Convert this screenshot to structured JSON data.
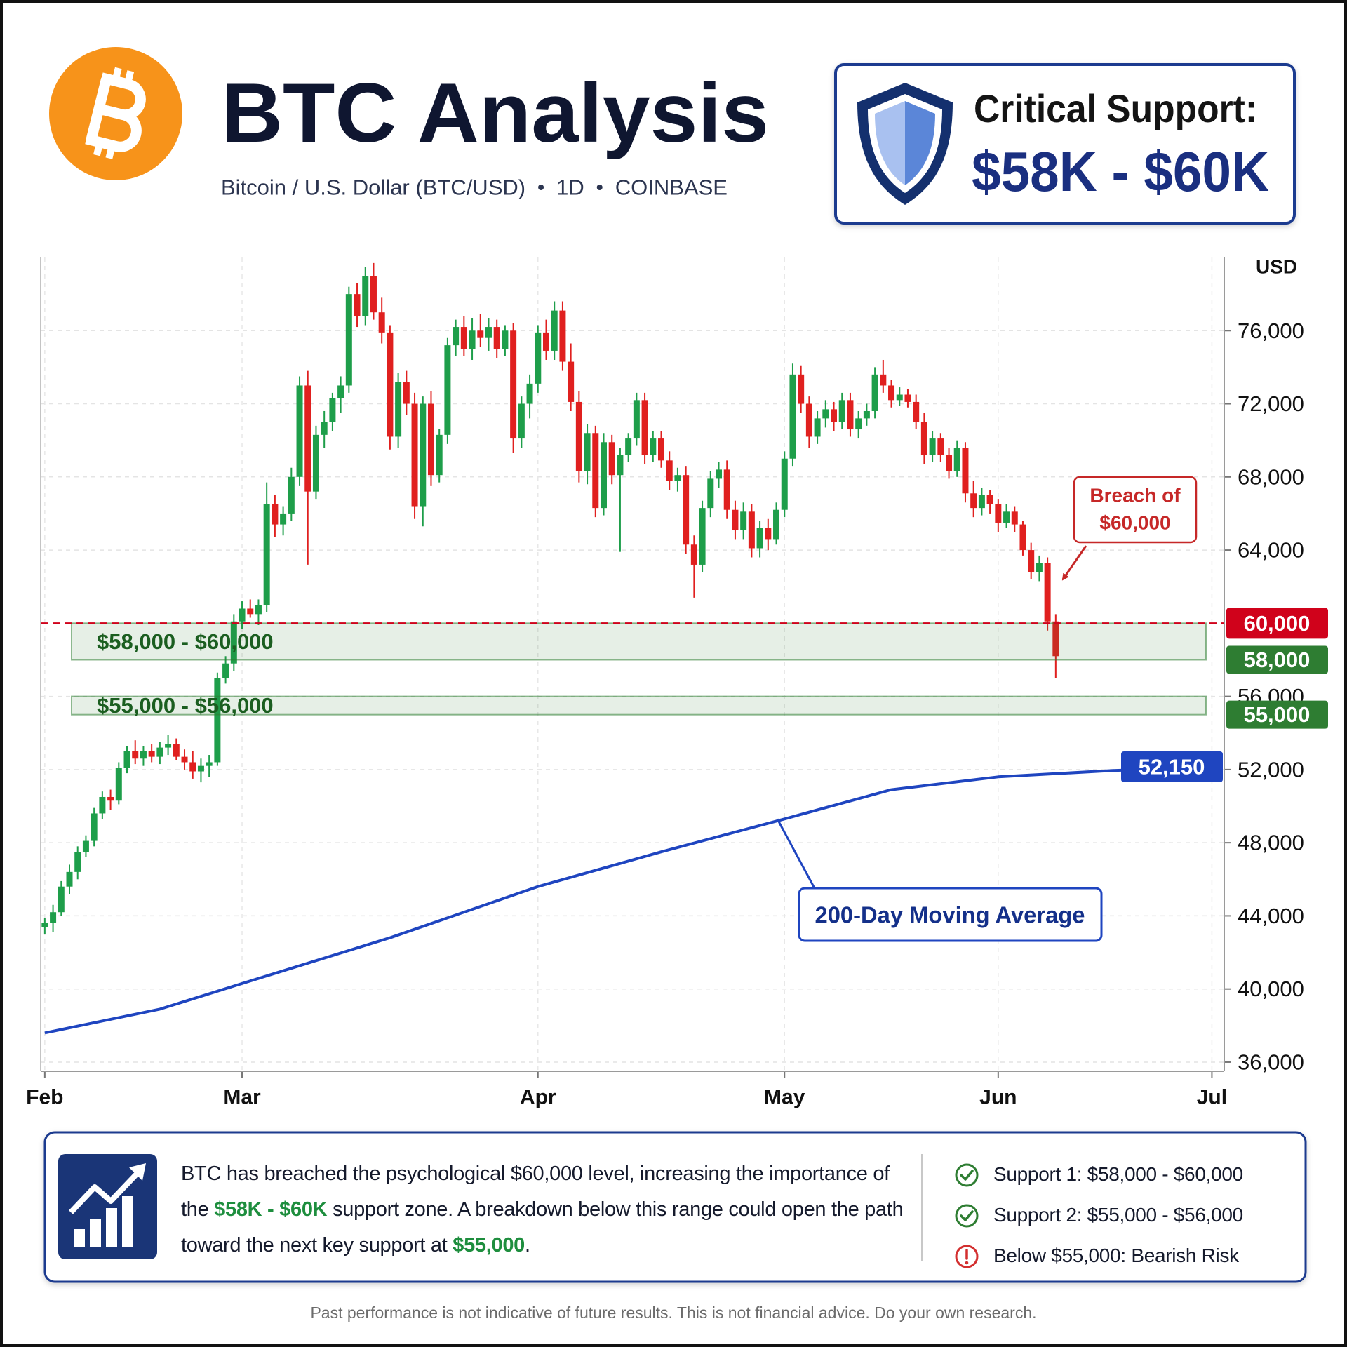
{
  "header": {
    "title": "BTC Analysis",
    "subtitle_parts": [
      "Bitcoin / U.S. Dollar (BTC/USD)",
      "1D",
      "COINBASE"
    ]
  },
  "callout": {
    "title": "Critical Support:",
    "value": "$58K - $60K"
  },
  "chart_data": {
    "type": "candlestick",
    "y_axis_label": "USD",
    "xlim": [
      -0.5,
      143.5
    ],
    "ylim": [
      35500,
      80000
    ],
    "xticks": [
      {
        "value": 0,
        "label": "Feb"
      },
      {
        "value": 24,
        "label": "Mar"
      },
      {
        "value": 60,
        "label": "Apr"
      },
      {
        "value": 90,
        "label": "May"
      },
      {
        "value": 116,
        "label": "Jun"
      },
      {
        "value": 142,
        "label": "Jul"
      }
    ],
    "yticks": [
      {
        "value": 36000,
        "label": "36,000"
      },
      {
        "value": 40000,
        "label": "40,000"
      },
      {
        "value": 44000,
        "label": "44,000"
      },
      {
        "value": 48000,
        "label": "48,000"
      },
      {
        "value": 52000,
        "label": "52,000"
      },
      {
        "value": 56000,
        "label": "56,000"
      },
      {
        "value": 64000,
        "label": "64,000"
      },
      {
        "value": 68000,
        "label": "68,000"
      },
      {
        "value": 72000,
        "label": "72,000"
      },
      {
        "value": 76000,
        "label": "76,000"
      }
    ],
    "grid": true,
    "up_color": "#1e9e4a",
    "down_color": "#e0201f",
    "candles": [
      [
        43400,
        43900,
        43000,
        43600
      ],
      [
        43600,
        44600,
        43100,
        44200
      ],
      [
        44200,
        45900,
        44000,
        45600
      ],
      [
        45600,
        46800,
        45200,
        46400
      ],
      [
        46400,
        47800,
        46000,
        47500
      ],
      [
        47500,
        48400,
        47200,
        48100
      ],
      [
        48100,
        49900,
        47800,
        49600
      ],
      [
        49600,
        50800,
        49300,
        50500
      ],
      [
        50500,
        50900,
        49800,
        50300
      ],
      [
        50300,
        52400,
        50100,
        52100
      ],
      [
        52100,
        53300,
        51800,
        53000
      ],
      [
        53000,
        53600,
        52300,
        52600
      ],
      [
        52600,
        53300,
        52200,
        53000
      ],
      [
        53000,
        53400,
        52400,
        52700
      ],
      [
        52700,
        53500,
        52300,
        53200
      ],
      [
        53200,
        53900,
        52800,
        53400
      ],
      [
        53400,
        53700,
        52500,
        52700
      ],
      [
        52700,
        53100,
        52000,
        52400
      ],
      [
        52400,
        53000,
        51500,
        51900
      ],
      [
        51900,
        52600,
        51300,
        52200
      ],
      [
        52200,
        52800,
        51600,
        52400
      ],
      [
        52400,
        57300,
        52200,
        57000
      ],
      [
        57000,
        58200,
        56700,
        57800
      ],
      [
        57800,
        60500,
        57400,
        60100
      ],
      [
        60100,
        61200,
        59700,
        60800
      ],
      [
        60800,
        61300,
        60300,
        60500
      ],
      [
        60500,
        61300,
        59900,
        61000
      ],
      [
        61000,
        67700,
        60600,
        66500
      ],
      [
        66500,
        67000,
        64700,
        65400
      ],
      [
        65400,
        66400,
        64800,
        66000
      ],
      [
        66000,
        68500,
        65600,
        68000
      ],
      [
        68000,
        73500,
        67500,
        73000
      ],
      [
        73000,
        73800,
        63200,
        67200
      ],
      [
        67200,
        70800,
        66800,
        70300
      ],
      [
        70300,
        71600,
        69600,
        71000
      ],
      [
        71000,
        72600,
        70500,
        72300
      ],
      [
        72300,
        73500,
        71500,
        73000
      ],
      [
        73000,
        78400,
        72600,
        78000
      ],
      [
        78000,
        78600,
        76200,
        76800
      ],
      [
        76800,
        79500,
        76300,
        79000
      ],
      [
        79000,
        79700,
        76600,
        77000
      ],
      [
        77000,
        77800,
        75300,
        75900
      ],
      [
        75900,
        76300,
        69500,
        70200
      ],
      [
        70200,
        73700,
        69600,
        73200
      ],
      [
        73200,
        73800,
        71400,
        72000
      ],
      [
        72000,
        72600,
        65700,
        66400
      ],
      [
        66400,
        72400,
        65300,
        72000
      ],
      [
        72000,
        72700,
        67500,
        68100
      ],
      [
        68100,
        70600,
        67700,
        70300
      ],
      [
        70300,
        75600,
        69800,
        75200
      ],
      [
        75200,
        76600,
        74600,
        76200
      ],
      [
        76200,
        76800,
        74600,
        75000
      ],
      [
        75000,
        76700,
        74400,
        76000
      ],
      [
        76000,
        76900,
        75100,
        75600
      ],
      [
        75600,
        76700,
        74900,
        76200
      ],
      [
        76200,
        76600,
        74500,
        75000
      ],
      [
        75000,
        76300,
        74600,
        76000
      ],
      [
        76000,
        76400,
        69300,
        70100
      ],
      [
        70100,
        72400,
        69600,
        72000
      ],
      [
        72000,
        73600,
        71200,
        73100
      ],
      [
        73100,
        76300,
        72600,
        75900
      ],
      [
        75900,
        76600,
        74400,
        74900
      ],
      [
        74900,
        77600,
        74400,
        77100
      ],
      [
        77100,
        77600,
        73800,
        74300
      ],
      [
        74300,
        75300,
        71600,
        72100
      ],
      [
        72100,
        72700,
        67700,
        68300
      ],
      [
        68300,
        70900,
        67600,
        70400
      ],
      [
        70400,
        70800,
        65800,
        66300
      ],
      [
        66300,
        70400,
        65900,
        69900
      ],
      [
        69900,
        70300,
        67600,
        68100
      ],
      [
        68100,
        69600,
        63900,
        69200
      ],
      [
        69200,
        70400,
        68800,
        70100
      ],
      [
        70100,
        72600,
        69700,
        72200
      ],
      [
        72200,
        72600,
        68700,
        69200
      ],
      [
        69200,
        70500,
        68800,
        70100
      ],
      [
        70100,
        70500,
        68500,
        68900
      ],
      [
        68900,
        69400,
        67300,
        67800
      ],
      [
        67800,
        68500,
        67200,
        68100
      ],
      [
        68100,
        68600,
        63800,
        64300
      ],
      [
        64300,
        64800,
        61400,
        63200
      ],
      [
        63200,
        66700,
        62800,
        66300
      ],
      [
        66300,
        68300,
        65800,
        67900
      ],
      [
        67900,
        68800,
        67400,
        68400
      ],
      [
        68400,
        68900,
        65700,
        66200
      ],
      [
        66200,
        66700,
        64600,
        65100
      ],
      [
        65100,
        66600,
        64600,
        66100
      ],
      [
        66100,
        66500,
        63600,
        64100
      ],
      [
        64100,
        65600,
        63600,
        65200
      ],
      [
        65200,
        65700,
        64000,
        64600
      ],
      [
        64600,
        66600,
        64300,
        66200
      ],
      [
        66200,
        69400,
        65800,
        69000
      ],
      [
        69000,
        74200,
        68600,
        73600
      ],
      [
        73600,
        74100,
        71500,
        72000
      ],
      [
        72000,
        72400,
        69600,
        70200
      ],
      [
        70200,
        71600,
        69800,
        71200
      ],
      [
        71200,
        72200,
        70700,
        71700
      ],
      [
        71700,
        72100,
        70500,
        71000
      ],
      [
        71000,
        72600,
        70600,
        72200
      ],
      [
        72200,
        72600,
        70200,
        70600
      ],
      [
        70600,
        71600,
        70100,
        71200
      ],
      [
        71200,
        72000,
        70800,
        71600
      ],
      [
        71600,
        74000,
        71200,
        73600
      ],
      [
        73600,
        74400,
        72600,
        73000
      ],
      [
        73000,
        73300,
        71800,
        72200
      ],
      [
        72200,
        72900,
        71900,
        72500
      ],
      [
        72500,
        72800,
        71800,
        72100
      ],
      [
        72100,
        72500,
        70600,
        71000
      ],
      [
        71000,
        71500,
        68700,
        69200
      ],
      [
        69200,
        70500,
        68800,
        70100
      ],
      [
        70100,
        70400,
        68800,
        69200
      ],
      [
        69200,
        69600,
        67900,
        68300
      ],
      [
        68300,
        70000,
        68000,
        69600
      ],
      [
        69600,
        69900,
        66600,
        67100
      ],
      [
        67100,
        67800,
        65800,
        66300
      ],
      [
        66300,
        67400,
        65900,
        67000
      ],
      [
        67000,
        67300,
        66000,
        66500
      ],
      [
        66500,
        66800,
        65000,
        65500
      ],
      [
        65500,
        66500,
        65200,
        66100
      ],
      [
        66100,
        66400,
        65000,
        65400
      ],
      [
        65400,
        65600,
        63700,
        64000
      ],
      [
        64000,
        64400,
        62400,
        62800
      ],
      [
        62800,
        63700,
        62300,
        63300
      ],
      [
        63300,
        63600,
        59600,
        60100
      ],
      [
        60100,
        60500,
        57000,
        58200
      ]
    ],
    "moving_average": {
      "name": "200-Day Moving Average",
      "color": "#1f45c0",
      "x": [
        0,
        14,
        24,
        42,
        60,
        75,
        90,
        103,
        116,
        130,
        143
      ],
      "values": [
        37600,
        38900,
        40300,
        42800,
        45600,
        47500,
        49300,
        50900,
        51600,
        51950,
        52150
      ],
      "end_label": {
        "value": 52150,
        "label": "52,150"
      }
    },
    "breach_level": {
      "value": 60000,
      "label": "60,000",
      "color": "#d0021b"
    },
    "support_zones": [
      {
        "label": "$58,000 - $60,000",
        "low": 58000,
        "high": 60000,
        "badge": {
          "value": 58000,
          "label": "58,000"
        }
      },
      {
        "label": "$55,000 - $56,000",
        "low": 55000,
        "high": 56000,
        "badge": {
          "value": 55000,
          "label": "55,000"
        }
      }
    ],
    "zone_color": "#2e7d32",
    "annotation": {
      "lines": [
        "Breach of",
        "$60,000"
      ],
      "color": "#c62828"
    }
  },
  "summary": {
    "segments": [
      {
        "text": "BTC has breached the psychological $60,000 level, increasing the importance of the ",
        "highlight": false
      },
      {
        "text": "$58K - $60K",
        "highlight": true
      },
      {
        "text": " support zone. A breakdown below this range could open the path toward the next key support at ",
        "highlight": false
      },
      {
        "text": "$55,000",
        "highlight": true
      },
      {
        "text": ".",
        "highlight": false
      }
    ],
    "checklist": [
      {
        "status": "ok",
        "text": "Support 1: $58,000 - $60,000"
      },
      {
        "status": "ok",
        "text": "Support 2: $55,000 - $56,000"
      },
      {
        "status": "risk",
        "text": "Below $55,000: Bearish Risk"
      }
    ]
  },
  "disclaimer": "Past performance is not indicative of future results. This is not financial advice. Do your own research."
}
